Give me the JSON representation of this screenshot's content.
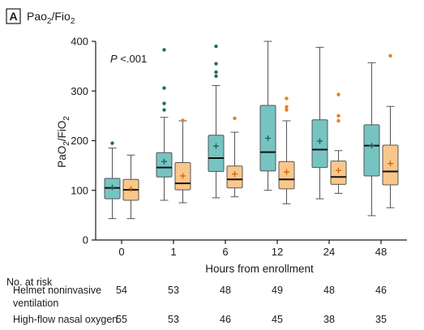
{
  "panel": {
    "letter": "A",
    "title_base": "Pao",
    "title_sub1": "2",
    "title_mid": "/Fio",
    "title_sub2": "2"
  },
  "chart_data": {
    "type": "box",
    "ylabel_base": "PaO",
    "ylabel_sub": "2",
    "ylabel_rest": "/FiO",
    "ylabel_sub2": "2",
    "xlabel": "Hours from enrollment",
    "ylim": [
      0,
      400
    ],
    "yticks": [
      0,
      100,
      200,
      300,
      400
    ],
    "categories": [
      "0",
      "1",
      "6",
      "12",
      "24",
      "48"
    ],
    "annotation": "P <.001",
    "colors": {
      "helmet": "#76c4c2",
      "hfno": "#f9c78a",
      "helmet_outlier": "#1f6d63",
      "hfno_outlier": "#ee7d1c"
    },
    "series": [
      {
        "name": "Helmet noninvasive ventilation",
        "boxes": [
          {
            "whisker_low": 43,
            "q1": 83,
            "median": 105,
            "q3": 124,
            "whisker_high": 185,
            "mean": 106,
            "outliers": [
              195
            ]
          },
          {
            "whisker_low": 80,
            "q1": 127,
            "median": 146,
            "q3": 176,
            "whisker_high": 247,
            "mean": 158,
            "outliers": [
              262,
              275,
              306,
              383
            ]
          },
          {
            "whisker_low": 85,
            "q1": 138,
            "median": 165,
            "q3": 211,
            "whisker_high": 311,
            "mean": 189,
            "outliers": [
              330,
              338,
              355,
              390
            ]
          },
          {
            "whisker_low": 100,
            "q1": 139,
            "median": 177,
            "q3": 271,
            "whisker_high": 400,
            "mean": 205,
            "outliers": []
          },
          {
            "whisker_low": 83,
            "q1": 146,
            "median": 182,
            "q3": 242,
            "whisker_high": 388,
            "mean": 199,
            "outliers": []
          },
          {
            "whisker_low": 49,
            "q1": 129,
            "median": 190,
            "q3": 232,
            "whisker_high": 357,
            "mean": 190,
            "outliers": []
          }
        ]
      },
      {
        "name": "High-flow nasal oxygen",
        "boxes": [
          {
            "whisker_low": 43,
            "q1": 80,
            "median": 101,
            "q3": 122,
            "whisker_high": 171,
            "mean": 103,
            "outliers": []
          },
          {
            "whisker_low": 75,
            "q1": 101,
            "median": 114,
            "q3": 156,
            "whisker_high": 240,
            "mean": 129,
            "outliers": [
              241
            ]
          },
          {
            "whisker_low": 87,
            "q1": 105,
            "median": 122,
            "q3": 149,
            "whisker_high": 217,
            "mean": 133,
            "outliers": [
              245
            ]
          },
          {
            "whisker_low": 73,
            "q1": 103,
            "median": 122,
            "q3": 158,
            "whisker_high": 240,
            "mean": 137,
            "outliers": [
              262,
              268,
              285
            ]
          },
          {
            "whisker_low": 94,
            "q1": 112,
            "median": 127,
            "q3": 159,
            "whisker_high": 180,
            "mean": 140,
            "outliers": [
              240,
              250,
              293
            ]
          },
          {
            "whisker_low": 65,
            "q1": 111,
            "median": 138,
            "q3": 191,
            "whisker_high": 269,
            "mean": 154,
            "outliers": [
              371
            ]
          }
        ]
      }
    ]
  },
  "risk_table": {
    "header": "No. at risk",
    "rows": [
      {
        "label_line1": "Helmet noninvasive",
        "label_line2": "ventilation",
        "values": [
          "54",
          "53",
          "48",
          "49",
          "48",
          "46"
        ]
      },
      {
        "label_line1": "High-flow nasal oxygen",
        "label_line2": "",
        "values": [
          "55",
          "53",
          "46",
          "45",
          "38",
          "35"
        ]
      }
    ]
  }
}
